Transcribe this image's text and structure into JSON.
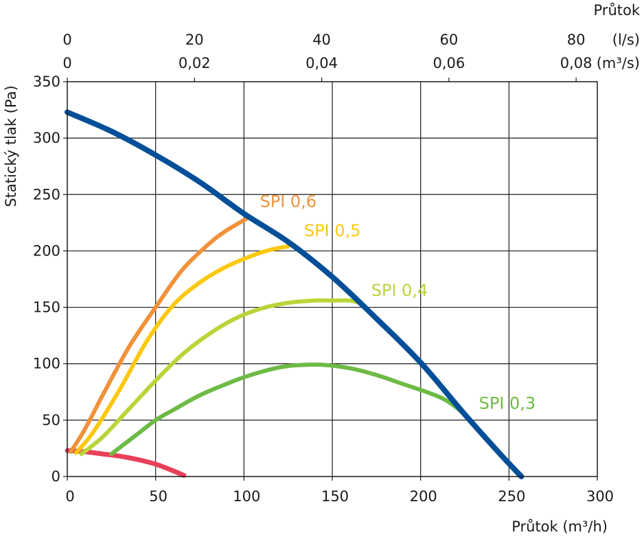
{
  "chart_data": {
    "type": "line",
    "title": "",
    "xlabel": "Průtok (m³/h)",
    "ylabel": "Statický tlak (Pa)",
    "xlim": [
      0,
      300
    ],
    "ylim": [
      0,
      350
    ],
    "x_ticks": [
      0,
      50,
      100,
      150,
      200,
      250,
      300
    ],
    "y_ticks": [
      0,
      50,
      100,
      150,
      200,
      250,
      300,
      350
    ],
    "grid": true,
    "top_axes": {
      "title": "Průtok",
      "ls": {
        "unit": "(l/s)",
        "ticks": [
          {
            "label": "0",
            "m3h": 0
          },
          {
            "label": "20",
            "m3h": 72
          },
          {
            "label": "40",
            "m3h": 144
          },
          {
            "label": "60",
            "m3h": 216
          },
          {
            "label": "80",
            "m3h": 288
          }
        ]
      },
      "m3s": {
        "unit": "(m³/s)",
        "ticks": [
          {
            "label": "0",
            "m3h": 0
          },
          {
            "label": "0,02",
            "m3h": 72
          },
          {
            "label": "0,04",
            "m3h": 144
          },
          {
            "label": "0,06",
            "m3h": 216
          },
          {
            "label": "0,08",
            "m3h": 288
          }
        ]
      }
    },
    "series": [
      {
        "color": "#e8405a",
        "width": 7,
        "points": [
          [
            0,
            23
          ],
          [
            10,
            22
          ],
          [
            20,
            20
          ],
          [
            30,
            18
          ],
          [
            40,
            15
          ],
          [
            50,
            11
          ],
          [
            60,
            5
          ],
          [
            66,
            1
          ]
        ]
      },
      {
        "name": "SPI 0,3",
        "color": "#6dba45",
        "width": 6,
        "label_at": [
          233,
          60
        ],
        "points": [
          [
            25,
            20
          ],
          [
            40,
            38
          ],
          [
            50,
            50
          ],
          [
            60,
            59
          ],
          [
            75,
            72
          ],
          [
            90,
            82
          ],
          [
            100,
            88
          ],
          [
            115,
            95
          ],
          [
            125,
            98
          ],
          [
            135,
            99
          ],
          [
            145,
            99
          ],
          [
            160,
            96
          ],
          [
            175,
            90
          ],
          [
            190,
            82
          ],
          [
            205,
            74
          ],
          [
            215,
            67
          ],
          [
            225,
            55
          ],
          [
            230,
            47
          ]
        ]
      },
      {
        "name": "SPI 0,4",
        "color": "#b9d53a",
        "width": 6,
        "label_at": [
          172,
          160
        ],
        "points": [
          [
            8,
            20
          ],
          [
            20,
            35
          ],
          [
            35,
            60
          ],
          [
            50,
            85
          ],
          [
            65,
            108
          ],
          [
            80,
            126
          ],
          [
            95,
            140
          ],
          [
            110,
            149
          ],
          [
            125,
            154
          ],
          [
            140,
            156
          ],
          [
            150,
            156
          ],
          [
            160,
            156
          ],
          [
            165,
            154
          ]
        ]
      },
      {
        "name": "SPI 0,5",
        "color": "#fcc80f",
        "width": 6,
        "label_at": [
          134,
          213
        ],
        "points": [
          [
            5,
            21
          ],
          [
            15,
            40
          ],
          [
            30,
            78
          ],
          [
            45,
            120
          ],
          [
            60,
            152
          ],
          [
            75,
            172
          ],
          [
            90,
            186
          ],
          [
            105,
            196
          ],
          [
            115,
            201
          ],
          [
            125,
            204
          ]
        ]
      },
      {
        "name": "SPI 0,6",
        "color": "#f0923a",
        "width": 6,
        "label_at": [
          109,
          239
        ],
        "points": [
          [
            2,
            22
          ],
          [
            10,
            42
          ],
          [
            20,
            72
          ],
          [
            35,
            115
          ],
          [
            50,
            150
          ],
          [
            65,
            183
          ],
          [
            80,
            206
          ],
          [
            90,
            218
          ],
          [
            102,
            229
          ]
        ]
      },
      {
        "color": "#004f98",
        "width": 8,
        "points": [
          [
            0,
            323
          ],
          [
            25,
            306
          ],
          [
            50,
            285
          ],
          [
            75,
            261
          ],
          [
            100,
            233
          ],
          [
            125,
            208
          ],
          [
            150,
            177
          ],
          [
            175,
            140
          ],
          [
            200,
            101
          ],
          [
            225,
            55
          ],
          [
            245,
            20
          ],
          [
            257,
            0
          ]
        ]
      }
    ]
  }
}
